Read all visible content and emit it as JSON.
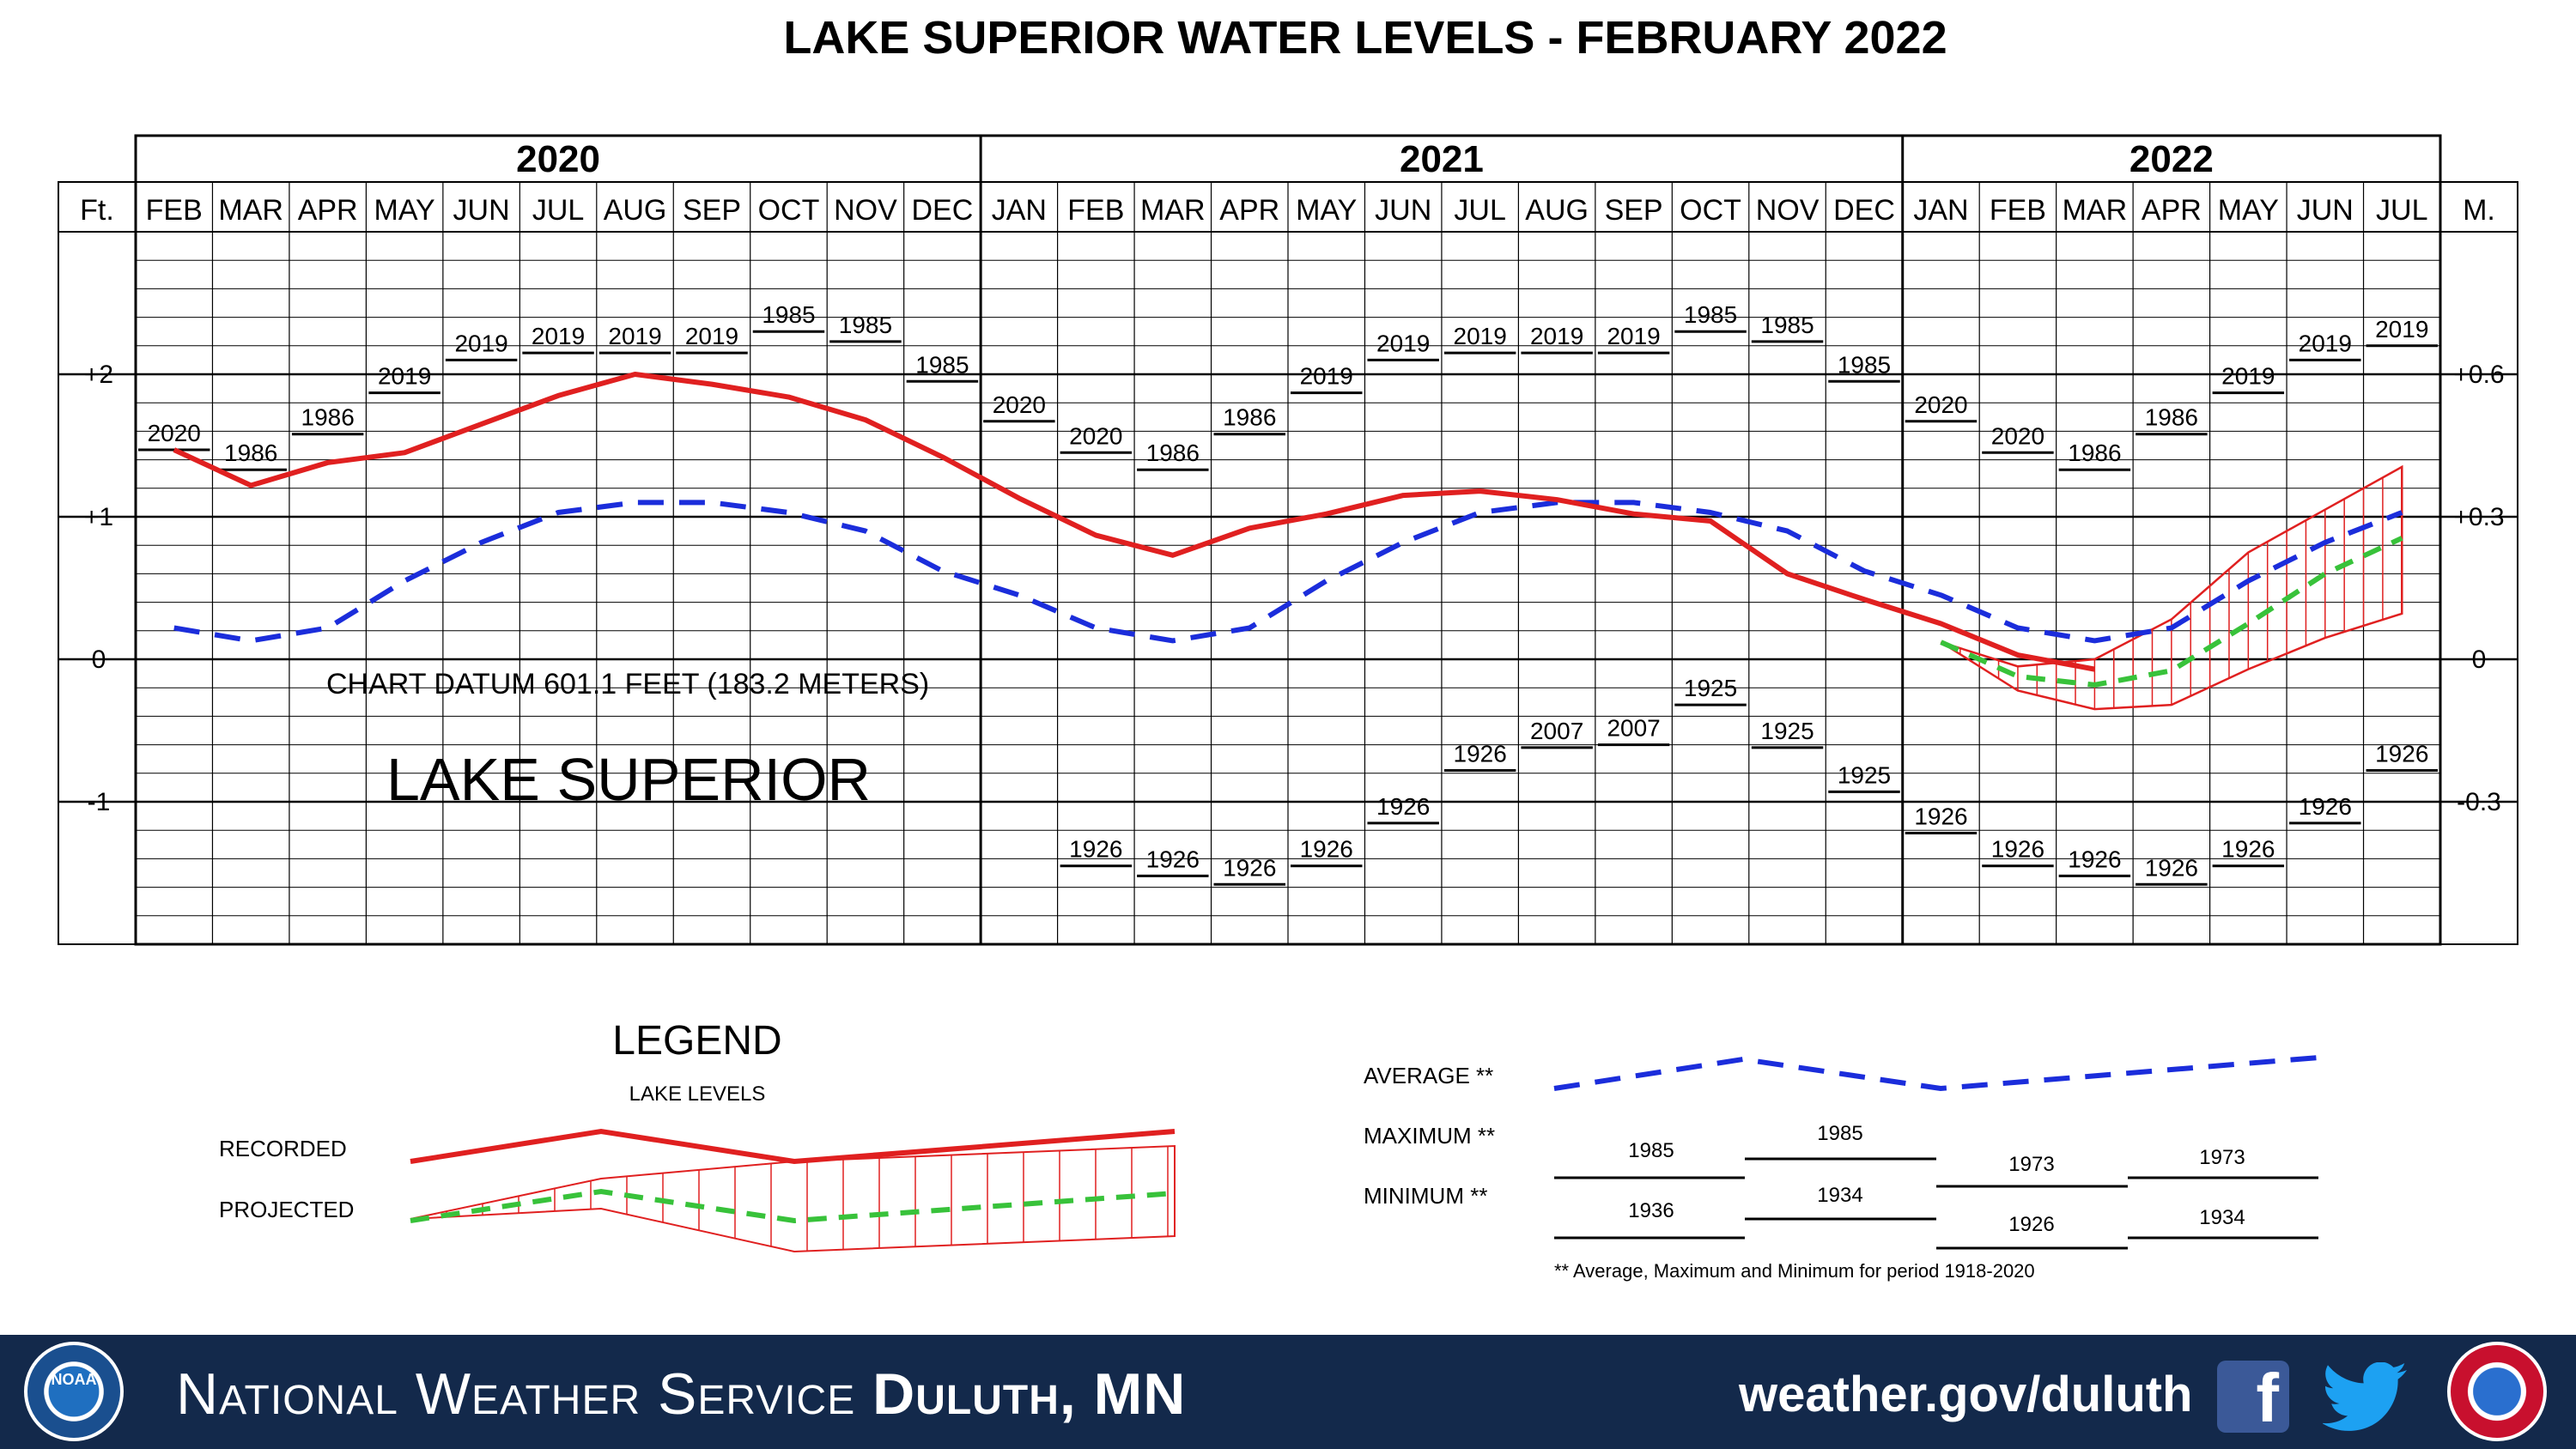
{
  "title": "LAKE SUPERIOR WATER LEVELS - FEBRUARY 2022",
  "chart_data": {
    "type": "line",
    "unit_left": "Ft.",
    "unit_right": "M.",
    "years": [
      {
        "label": "2020",
        "months": 11
      },
      {
        "label": "2021",
        "months": 12
      },
      {
        "label": "2022",
        "months": 7
      }
    ],
    "month_labels": [
      "FEB",
      "MAR",
      "APR",
      "MAY",
      "JUN",
      "JUL",
      "AUG",
      "SEP",
      "OCT",
      "NOV",
      "DEC",
      "JAN",
      "FEB",
      "MAR",
      "APR",
      "MAY",
      "JUN",
      "JUL",
      "AUG",
      "SEP",
      "OCT",
      "NOV",
      "DEC",
      "JAN",
      "FEB",
      "MAR",
      "APR",
      "MAY",
      "JUN",
      "JUL"
    ],
    "ylim": [
      -2,
      3
    ],
    "y_ticks_left": [
      {
        "value": 2,
        "label": "+2"
      },
      {
        "value": 1,
        "label": "+1"
      },
      {
        "value": 0,
        "label": "0"
      },
      {
        "value": -1,
        "label": "-1"
      }
    ],
    "y_ticks_right": [
      {
        "value": 2,
        "label": "+0.6"
      },
      {
        "value": 1,
        "label": "+0.3"
      },
      {
        "value": 0,
        "label": "0"
      },
      {
        "value": -1,
        "label": "-0.3"
      }
    ],
    "series": [
      {
        "name": "RECORDED",
        "color": "#e02020",
        "x": [
          0,
          1,
          2,
          3,
          4,
          5,
          6,
          7,
          8,
          9,
          10,
          11,
          12,
          13,
          14,
          15,
          16,
          17,
          18,
          19,
          20,
          21,
          22,
          23,
          24,
          25
        ],
        "values": [
          1.47,
          1.22,
          1.38,
          1.45,
          1.65,
          1.85,
          2.0,
          1.93,
          1.84,
          1.68,
          1.42,
          1.13,
          0.87,
          0.73,
          0.92,
          1.02,
          1.15,
          1.18,
          1.12,
          1.02,
          0.97,
          0.6,
          0.42,
          0.25,
          0.03,
          -0.07
        ]
      },
      {
        "name": "AVERAGE",
        "color": "#1b2ddb",
        "x": [
          0,
          1,
          2,
          3,
          4,
          5,
          6,
          7,
          8,
          9,
          10,
          11,
          12,
          13,
          14,
          15,
          16,
          17,
          18,
          19,
          20,
          21,
          22,
          23,
          24,
          25,
          26,
          27,
          28,
          29
        ],
        "values": [
          0.22,
          0.13,
          0.22,
          0.55,
          0.82,
          1.03,
          1.1,
          1.1,
          1.03,
          0.9,
          0.62,
          0.45,
          0.22,
          0.13,
          0.22,
          0.55,
          0.82,
          1.03,
          1.1,
          1.1,
          1.03,
          0.9,
          0.62,
          0.45,
          0.22,
          0.13,
          0.22,
          0.55,
          0.82,
          1.03
        ]
      },
      {
        "name": "PROJECTED",
        "color": "#38c23a",
        "x": [
          23,
          24,
          25,
          26,
          27,
          28,
          29
        ],
        "values": [
          0.12,
          -0.12,
          -0.18,
          -0.08,
          0.25,
          0.6,
          0.85
        ],
        "range_max": [
          0.12,
          -0.05,
          0.0,
          0.28,
          0.75,
          1.05,
          1.35
        ],
        "range_min": [
          0.12,
          -0.22,
          -0.35,
          -0.32,
          -0.07,
          0.15,
          0.32
        ]
      }
    ],
    "maximum": [
      {
        "label": "2020",
        "value": 1.47
      },
      {
        "label": "1986",
        "value": 1.33
      },
      {
        "label": "1986",
        "value": 1.58
      },
      {
        "label": "2019",
        "value": 1.87
      },
      {
        "label": "2019",
        "value": 2.1
      },
      {
        "label": "2019",
        "value": 2.15
      },
      {
        "label": "2019",
        "value": 2.15
      },
      {
        "label": "2019",
        "value": 2.15
      },
      {
        "label": "1985",
        "value": 2.3
      },
      {
        "label": "1985",
        "value": 2.23
      },
      {
        "label": "1985",
        "value": 1.95
      },
      {
        "label": "2020",
        "value": 1.67
      },
      {
        "label": "2020",
        "value": 1.45
      },
      {
        "label": "1986",
        "value": 1.33
      },
      {
        "label": "1986",
        "value": 1.58
      },
      {
        "label": "2019",
        "value": 1.87
      },
      {
        "label": "2019",
        "value": 2.1
      },
      {
        "label": "2019",
        "value": 2.15
      },
      {
        "label": "2019",
        "value": 2.15
      },
      {
        "label": "2019",
        "value": 2.15
      },
      {
        "label": "1985",
        "value": 2.3
      },
      {
        "label": "1985",
        "value": 2.23
      },
      {
        "label": "1985",
        "value": 1.95
      },
      {
        "label": "2020",
        "value": 1.67
      },
      {
        "label": "2020",
        "value": 1.45
      },
      {
        "label": "1986",
        "value": 1.33
      },
      {
        "label": "1986",
        "value": 1.58
      },
      {
        "label": "2019",
        "value": 1.87
      },
      {
        "label": "2019",
        "value": 2.1
      },
      {
        "label": "2019",
        "value": 2.2
      }
    ],
    "minimum": [
      {
        "x": 12,
        "label": "1926",
        "value": -1.45
      },
      {
        "x": 13,
        "label": "1926",
        "value": -1.52
      },
      {
        "x": 14,
        "label": "1926",
        "value": -1.58
      },
      {
        "x": 15,
        "label": "1926",
        "value": -1.45
      },
      {
        "x": 16,
        "label": "1926",
        "value": -1.15
      },
      {
        "x": 17,
        "label": "1926",
        "value": -0.78
      },
      {
        "x": 18,
        "label": "2007",
        "value": -0.62
      },
      {
        "x": 19,
        "label": "2007",
        "value": -0.6
      },
      {
        "x": 20,
        "label": "1925",
        "value": -0.32
      },
      {
        "x": 21,
        "label": "1925",
        "value": -0.62
      },
      {
        "x": 22,
        "label": "1925",
        "value": -0.93
      },
      {
        "x": 23,
        "label": "1926",
        "value": -1.22
      },
      {
        "x": 24,
        "label": "1926",
        "value": -1.45
      },
      {
        "x": 25,
        "label": "1926",
        "value": -1.52
      },
      {
        "x": 26,
        "label": "1926",
        "value": -1.58
      },
      {
        "x": 27,
        "label": "1926",
        "value": -1.45
      },
      {
        "x": 28,
        "label": "1926",
        "value": -1.15
      },
      {
        "x": 29,
        "label": "1926",
        "value": -0.78
      }
    ],
    "annotations": [
      "CHART DATUM  601.1 FEET (183.2 METERS)",
      "LAKE SUPERIOR"
    ],
    "legend": {
      "title": "LEGEND",
      "subtitle": "LAKE LEVELS",
      "recorded": "RECORDED",
      "projected": "PROJECTED",
      "average": "AVERAGE **",
      "maximum": "MAXIMUM **",
      "minimum": "MINIMUM **",
      "max_examples": [
        "1985",
        "1985",
        "1973",
        "1973"
      ],
      "min_examples": [
        "1936",
        "1934",
        "1926",
        "1934"
      ],
      "footnote": "** Average, Maximum and Minimum for period 1918-2020"
    },
    "grid": true
  },
  "footer": {
    "title_regular": "National Weather Service ",
    "title_bold": "Duluth, MN",
    "url": "weather.gov/duluth",
    "background": "#13294b"
  }
}
